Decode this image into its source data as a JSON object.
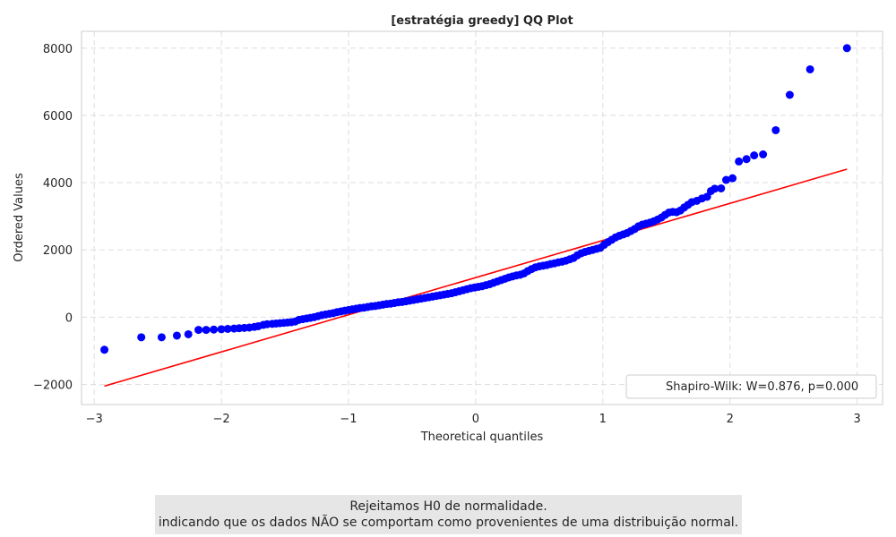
{
  "chart_data": {
    "type": "scatter",
    "title": "[estratégia greedy] QQ Plot",
    "xlabel": "Theoretical quantiles",
    "ylabel": "Ordered Values",
    "xlim": [
      -3.1,
      3.2
    ],
    "ylim": [
      -2600,
      8500
    ],
    "xticks": [
      -3,
      -2,
      -1,
      0,
      1,
      2,
      3
    ],
    "xtick_labels": [
      "−3",
      "−2",
      "−1",
      "0",
      "1",
      "2",
      "3"
    ],
    "yticks": [
      -2000,
      0,
      2000,
      4000,
      6000,
      8000
    ],
    "ytick_labels": [
      "−2000",
      "0",
      "2000",
      "4000",
      "6000",
      "8000"
    ],
    "grid": true,
    "legend_position": "bottom-right",
    "legend_label": "Shapiro-Wilk: W=0.876, p=0.000",
    "point_color": "#0000ff",
    "line_color": "#ff0000",
    "fit_line": {
      "x": [
        -2.92,
        2.92
      ],
      "y": [
        -2050,
        4400
      ]
    },
    "points": [
      [
        -2.92,
        -970
      ],
      [
        -2.63,
        -600
      ],
      [
        -2.47,
        -600
      ],
      [
        -2.35,
        -550
      ],
      [
        -2.26,
        -510
      ],
      [
        -2.18,
        -380
      ],
      [
        -2.12,
        -380
      ],
      [
        -2.06,
        -370
      ],
      [
        -2.0,
        -360
      ],
      [
        -1.95,
        -350
      ],
      [
        -1.9,
        -340
      ],
      [
        -1.86,
        -330
      ],
      [
        -1.82,
        -320
      ],
      [
        -1.78,
        -310
      ],
      [
        -1.74,
        -290
      ],
      [
        -1.71,
        -270
      ],
      [
        -1.67,
        -230
      ],
      [
        -1.64,
        -210
      ],
      [
        -1.6,
        -200
      ],
      [
        -1.57,
        -190
      ],
      [
        -1.54,
        -180
      ],
      [
        -1.51,
        -170
      ],
      [
        -1.48,
        -160
      ],
      [
        -1.45,
        -150
      ],
      [
        -1.42,
        -130
      ],
      [
        -1.39,
        -80
      ],
      [
        -1.36,
        -60
      ],
      [
        -1.33,
        -40
      ],
      [
        -1.3,
        -20
      ],
      [
        -1.27,
        0
      ],
      [
        -1.24,
        30
      ],
      [
        -1.21,
        60
      ],
      [
        -1.18,
        80
      ],
      [
        -1.15,
        100
      ],
      [
        -1.12,
        120
      ],
      [
        -1.09,
        150
      ],
      [
        -1.06,
        170
      ],
      [
        -1.03,
        190
      ],
      [
        -1.0,
        210
      ],
      [
        -0.97,
        230
      ],
      [
        -0.94,
        250
      ],
      [
        -0.91,
        270
      ],
      [
        -0.88,
        280
      ],
      [
        -0.85,
        300
      ],
      [
        -0.82,
        320
      ],
      [
        -0.79,
        330
      ],
      [
        -0.76,
        350
      ],
      [
        -0.73,
        370
      ],
      [
        -0.7,
        390
      ],
      [
        -0.67,
        400
      ],
      [
        -0.64,
        420
      ],
      [
        -0.61,
        440
      ],
      [
        -0.58,
        450
      ],
      [
        -0.55,
        470
      ],
      [
        -0.52,
        490
      ],
      [
        -0.49,
        510
      ],
      [
        -0.46,
        530
      ],
      [
        -0.43,
        550
      ],
      [
        -0.4,
        570
      ],
      [
        -0.37,
        590
      ],
      [
        -0.34,
        610
      ],
      [
        -0.31,
        630
      ],
      [
        -0.28,
        650
      ],
      [
        -0.25,
        670
      ],
      [
        -0.22,
        690
      ],
      [
        -0.19,
        710
      ],
      [
        -0.16,
        740
      ],
      [
        -0.13,
        770
      ],
      [
        -0.1,
        800
      ],
      [
        -0.07,
        830
      ],
      [
        -0.04,
        860
      ],
      [
        -0.01,
        880
      ],
      [
        0.02,
        900
      ],
      [
        0.05,
        920
      ],
      [
        0.08,
        950
      ],
      [
        0.11,
        980
      ],
      [
        0.14,
        1020
      ],
      [
        0.17,
        1060
      ],
      [
        0.2,
        1100
      ],
      [
        0.23,
        1140
      ],
      [
        0.26,
        1180
      ],
      [
        0.29,
        1210
      ],
      [
        0.32,
        1240
      ],
      [
        0.35,
        1260
      ],
      [
        0.38,
        1300
      ],
      [
        0.41,
        1370
      ],
      [
        0.44,
        1430
      ],
      [
        0.47,
        1480
      ],
      [
        0.5,
        1510
      ],
      [
        0.53,
        1530
      ],
      [
        0.56,
        1550
      ],
      [
        0.59,
        1580
      ],
      [
        0.62,
        1600
      ],
      [
        0.65,
        1630
      ],
      [
        0.68,
        1650
      ],
      [
        0.71,
        1680
      ],
      [
        0.74,
        1720
      ],
      [
        0.77,
        1760
      ],
      [
        0.8,
        1840
      ],
      [
        0.83,
        1900
      ],
      [
        0.86,
        1940
      ],
      [
        0.89,
        1970
      ],
      [
        0.92,
        2000
      ],
      [
        0.95,
        2030
      ],
      [
        0.98,
        2060
      ],
      [
        1.01,
        2150
      ],
      [
        1.04,
        2230
      ],
      [
        1.07,
        2300
      ],
      [
        1.1,
        2370
      ],
      [
        1.13,
        2420
      ],
      [
        1.16,
        2460
      ],
      [
        1.19,
        2500
      ],
      [
        1.22,
        2560
      ],
      [
        1.25,
        2620
      ],
      [
        1.28,
        2700
      ],
      [
        1.31,
        2750
      ],
      [
        1.34,
        2780
      ],
      [
        1.37,
        2810
      ],
      [
        1.4,
        2850
      ],
      [
        1.43,
        2900
      ],
      [
        1.46,
        2960
      ],
      [
        1.49,
        3040
      ],
      [
        1.52,
        3110
      ],
      [
        1.55,
        3130
      ],
      [
        1.58,
        3120
      ],
      [
        1.61,
        3170
      ],
      [
        1.64,
        3260
      ],
      [
        1.67,
        3340
      ],
      [
        1.7,
        3420
      ],
      [
        1.74,
        3460
      ],
      [
        1.78,
        3530
      ],
      [
        1.82,
        3580
      ],
      [
        1.85,
        3750
      ],
      [
        1.88,
        3820
      ],
      [
        1.93,
        3830
      ],
      [
        1.97,
        4080
      ],
      [
        2.02,
        4130
      ],
      [
        2.07,
        4630
      ],
      [
        2.13,
        4700
      ],
      [
        2.19,
        4810
      ],
      [
        2.26,
        4840
      ],
      [
        2.36,
        5560
      ],
      [
        2.47,
        6610
      ],
      [
        2.63,
        7370
      ],
      [
        2.92,
        8000
      ]
    ]
  },
  "note": {
    "line1": "Rejeitamos H0 de normalidade.",
    "line2": "indicando que os dados NÃO se comportam como provenientes de uma distribuição normal."
  }
}
